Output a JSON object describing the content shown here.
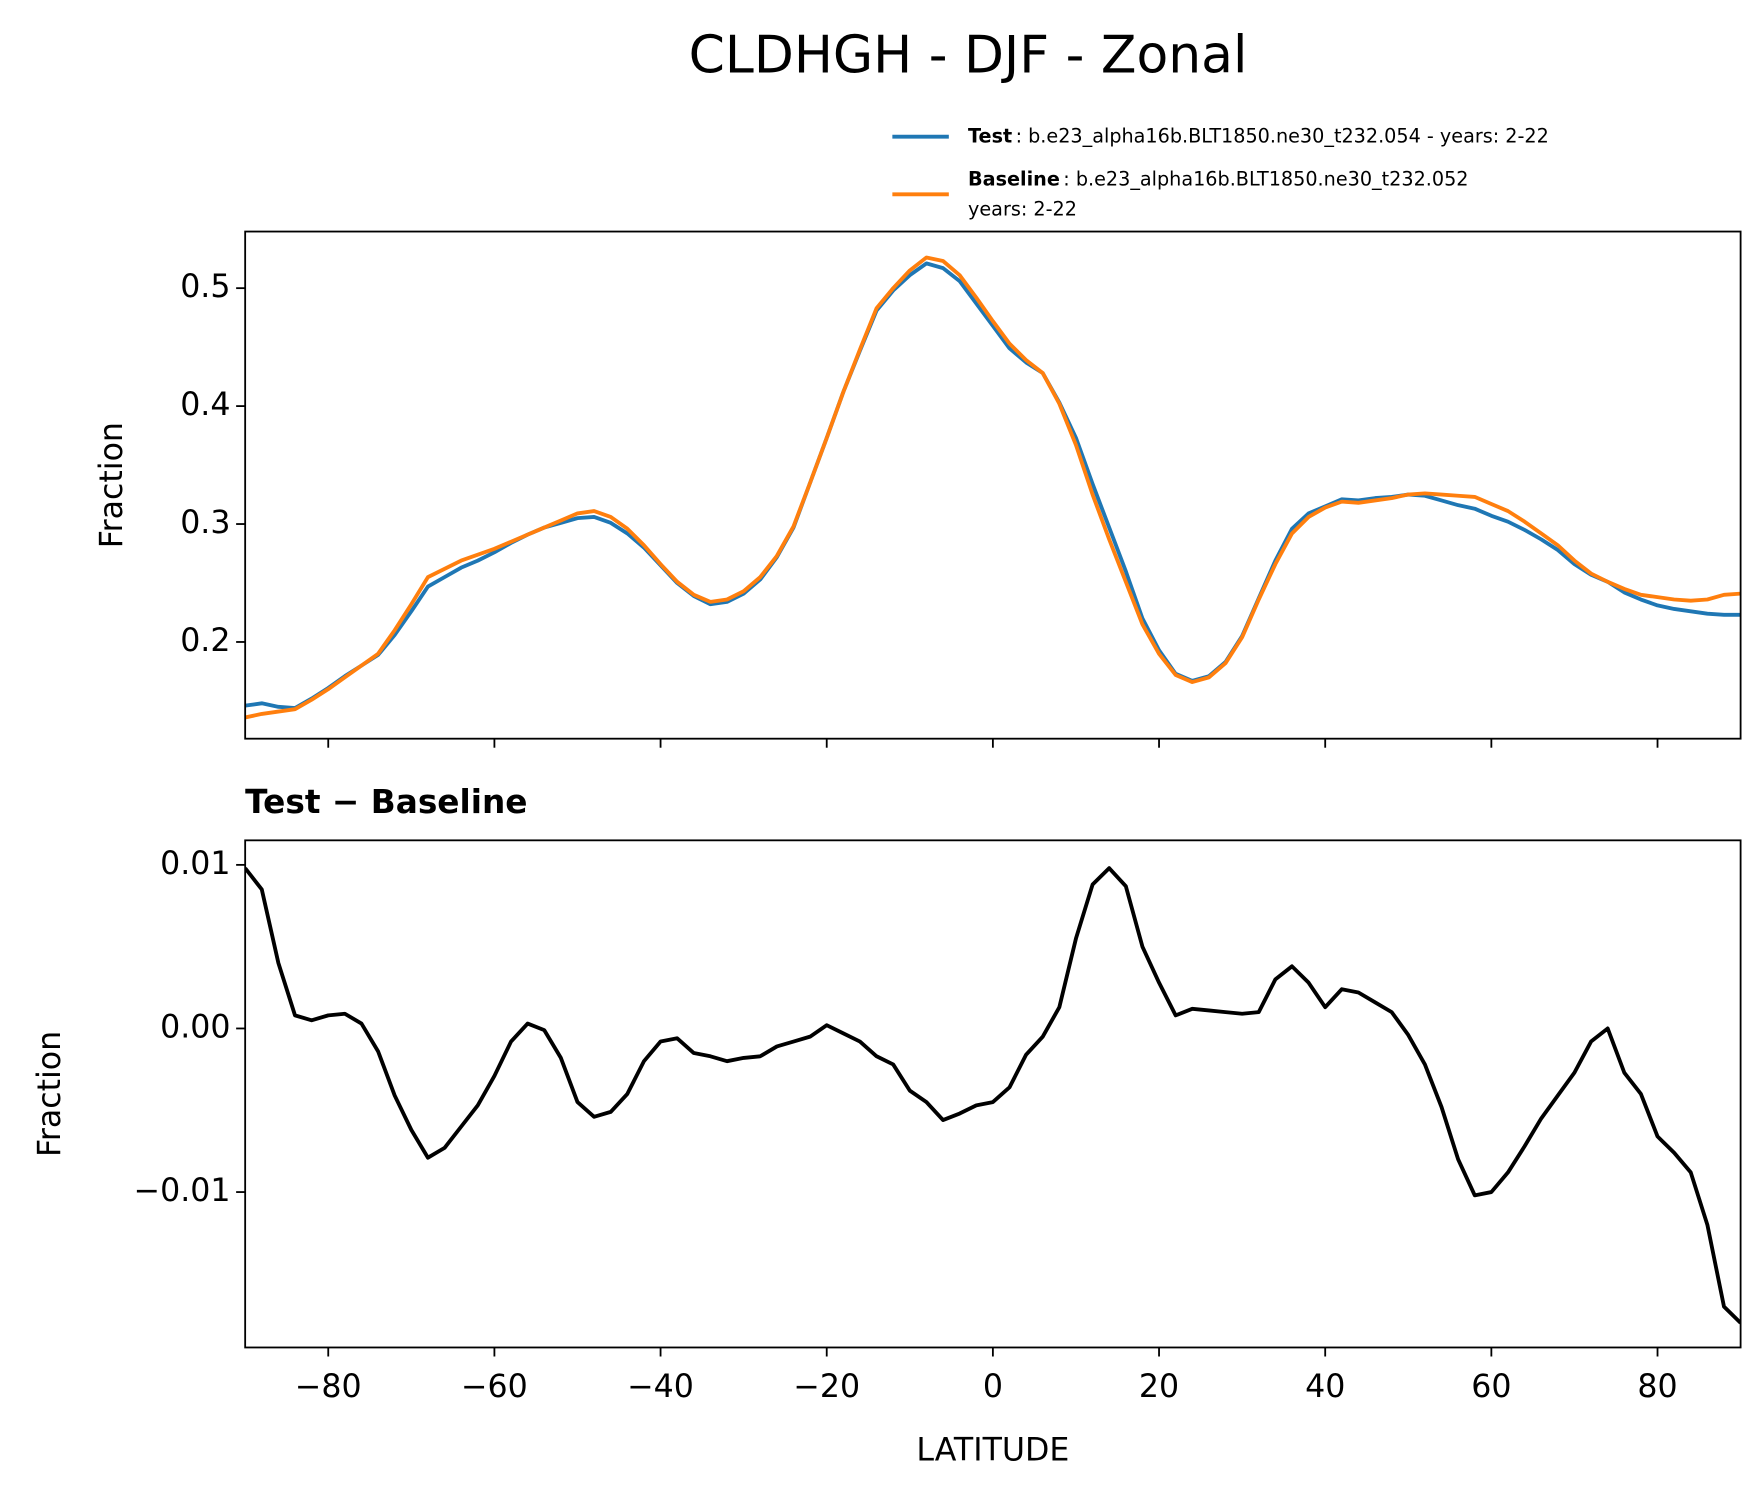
{
  "title": "CLDHGH - DJF - Zonal",
  "chart_data": [
    {
      "type": "line",
      "ylabel": "Fraction",
      "legend": "upper right",
      "show_xtick_labels": false,
      "x": [
        -90,
        -88,
        -86,
        -84,
        -82,
        -80,
        -78,
        -76,
        -74,
        -72,
        -70,
        -68,
        -66,
        -64,
        -62,
        -60,
        -58,
        -56,
        -54,
        -52,
        -50,
        -48,
        -46,
        -44,
        -42,
        -40,
        -38,
        -36,
        -34,
        -32,
        -30,
        -28,
        -26,
        -24,
        -22,
        -20,
        -18,
        -16,
        -14,
        -12,
        -10,
        -8,
        -6,
        -4,
        -2,
        0,
        2,
        4,
        6,
        8,
        10,
        12,
        14,
        16,
        18,
        20,
        22,
        24,
        26,
        28,
        30,
        32,
        34,
        36,
        38,
        40,
        42,
        44,
        46,
        48,
        50,
        52,
        54,
        56,
        58,
        60,
        62,
        64,
        66,
        68,
        70,
        72,
        74,
        76,
        78,
        80,
        82,
        84,
        86,
        88,
        90
      ],
      "series": [
        {
          "name": "Test",
          "detail": [
            ": b.e23_alpha16b.BLT1850.ne30_t232.054 - years: 2-22"
          ],
          "color": "#1f77b4",
          "values": [
            0.146,
            0.148,
            0.145,
            0.144,
            0.152,
            0.161,
            0.171,
            0.18,
            0.189,
            0.206,
            0.226,
            0.247,
            0.255,
            0.263,
            0.269,
            0.276,
            0.284,
            0.291,
            0.297,
            0.301,
            0.305,
            0.306,
            0.301,
            0.292,
            0.28,
            0.265,
            0.25,
            0.239,
            0.232,
            0.234,
            0.241,
            0.253,
            0.272,
            0.297,
            0.335,
            0.373,
            0.412,
            0.447,
            0.481,
            0.498,
            0.511,
            0.521,
            0.517,
            0.506,
            0.487,
            0.468,
            0.449,
            0.437,
            0.428,
            0.403,
            0.373,
            0.334,
            0.297,
            0.26,
            0.22,
            0.193,
            0.173,
            0.167,
            0.171,
            0.183,
            0.205,
            0.237,
            0.269,
            0.296,
            0.309,
            0.315,
            0.321,
            0.32,
            0.322,
            0.323,
            0.325,
            0.324,
            0.32,
            0.316,
            0.313,
            0.307,
            0.302,
            0.295,
            0.287,
            0.278,
            0.266,
            0.257,
            0.251,
            0.242,
            0.236,
            0.231,
            0.228,
            0.226,
            0.224,
            0.223,
            0.223
          ]
        },
        {
          "name": "Baseline",
          "detail": [
            ": b.e23_alpha16b.BLT1850.ne30_t232.052",
            "years: 2-22"
          ],
          "color": "#ff7f0e",
          "values": [
            0.136,
            0.139,
            0.141,
            0.143,
            0.151,
            0.16,
            0.17,
            0.18,
            0.19,
            0.21,
            0.232,
            0.255,
            0.262,
            0.269,
            0.274,
            0.279,
            0.285,
            0.291,
            0.297,
            0.303,
            0.309,
            0.311,
            0.306,
            0.296,
            0.282,
            0.266,
            0.251,
            0.24,
            0.234,
            0.236,
            0.243,
            0.255,
            0.273,
            0.298,
            0.335,
            0.373,
            0.412,
            0.448,
            0.483,
            0.5,
            0.515,
            0.526,
            0.523,
            0.511,
            0.492,
            0.472,
            0.453,
            0.439,
            0.428,
            0.402,
            0.367,
            0.325,
            0.287,
            0.251,
            0.215,
            0.19,
            0.172,
            0.166,
            0.17,
            0.182,
            0.204,
            0.236,
            0.266,
            0.292,
            0.306,
            0.314,
            0.319,
            0.318,
            0.32,
            0.322,
            0.325,
            0.326,
            0.325,
            0.324,
            0.323,
            0.317,
            0.311,
            0.302,
            0.292,
            0.282,
            0.269,
            0.258,
            0.251,
            0.245,
            0.24,
            0.238,
            0.236,
            0.235,
            0.236,
            0.24,
            0.241
          ]
        }
      ],
      "xlim": [
        -90,
        90
      ],
      "xticks": [
        -80,
        -60,
        -40,
        -20,
        0,
        20,
        40,
        60,
        80
      ],
      "ylim": [
        0.118,
        0.548
      ],
      "yticks": [
        0.2,
        0.3,
        0.4,
        0.5
      ]
    },
    {
      "type": "line",
      "title": "Test − Baseline",
      "xlabel": "LATITUDE",
      "ylabel": "Fraction",
      "color": "#000000",
      "x": [
        -90,
        -88,
        -86,
        -84,
        -82,
        -80,
        -78,
        -76,
        -74,
        -72,
        -70,
        -68,
        -66,
        -64,
        -62,
        -60,
        -58,
        -56,
        -54,
        -52,
        -50,
        -48,
        -46,
        -44,
        -42,
        -40,
        -38,
        -36,
        -34,
        -32,
        -30,
        -28,
        -26,
        -24,
        -22,
        -20,
        -18,
        -16,
        -14,
        -12,
        -10,
        -8,
        -6,
        -4,
        -2,
        0,
        2,
        4,
        6,
        8,
        10,
        12,
        14,
        16,
        18,
        20,
        22,
        24,
        26,
        28,
        30,
        32,
        34,
        36,
        38,
        40,
        42,
        44,
        46,
        48,
        50,
        52,
        54,
        56,
        58,
        60,
        62,
        64,
        66,
        68,
        70,
        72,
        74,
        76,
        78,
        80,
        82,
        84,
        86,
        88,
        90
      ],
      "values": [
        0.0098,
        0.0085,
        0.004,
        0.0008,
        0.0005,
        0.0008,
        0.0009,
        0.0003,
        -0.0014,
        -0.0041,
        -0.0062,
        -0.0079,
        -0.0073,
        -0.006,
        -0.0047,
        -0.0029,
        -0.0008,
        0.0003,
        -0.0001,
        -0.0018,
        -0.0045,
        -0.0054,
        -0.0051,
        -0.004,
        -0.002,
        -0.0008,
        -0.0006,
        -0.0015,
        -0.0017,
        -0.002,
        -0.0018,
        -0.0017,
        -0.0011,
        -0.0008,
        -0.0005,
        0.0002,
        -0.0003,
        -0.0008,
        -0.0017,
        -0.0022,
        -0.0038,
        -0.0045,
        -0.0056,
        -0.0052,
        -0.0047,
        -0.0045,
        -0.0036,
        -0.0016,
        -0.0005,
        0.0013,
        0.0055,
        0.0088,
        0.0098,
        0.0087,
        0.005,
        0.0028,
        0.0008,
        0.0012,
        0.0011,
        0.001,
        0.0009,
        0.001,
        0.003,
        0.0038,
        0.0028,
        0.0013,
        0.0024,
        0.0022,
        0.0016,
        0.001,
        -0.0004,
        -0.0022,
        -0.0048,
        -0.008,
        -0.0102,
        -0.01,
        -0.0088,
        -0.0072,
        -0.0055,
        -0.0041,
        -0.0027,
        -0.0008,
        0.0,
        -0.0027,
        -0.004,
        -0.0066,
        -0.0076,
        -0.0088,
        -0.012,
        -0.017,
        -0.018
      ],
      "xlim": [
        -90,
        90
      ],
      "xticks": [
        {
          "value": -80,
          "label": "−80"
        },
        {
          "value": -60,
          "label": "−60"
        },
        {
          "value": -40,
          "label": "−40"
        },
        {
          "value": -20,
          "label": "−20"
        },
        0,
        20,
        40,
        60,
        80
      ],
      "ylim": [
        -0.0195,
        0.0115
      ],
      "yticks": [
        0.01,
        {
          "value": 0,
          "label": "0.00"
        },
        {
          "value": -0.01,
          "label": "−0.01"
        }
      ]
    }
  ]
}
